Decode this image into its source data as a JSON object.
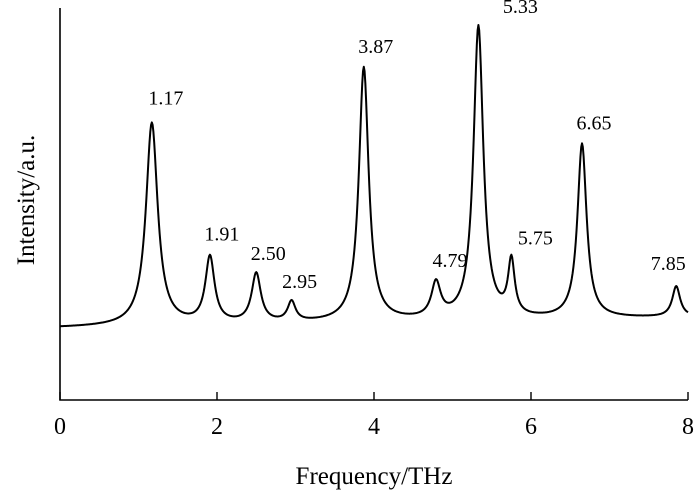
{
  "chart_data": {
    "type": "line",
    "xlabel": "Frequency/THz",
    "ylabel": "Intensity/a.u.",
    "xlim": [
      0,
      8
    ],
    "ylim": [
      0,
      1
    ],
    "x_ticks": [
      "0",
      "2",
      "4",
      "6",
      "8"
    ],
    "y_ticks_shown": false,
    "grid": false,
    "series": [
      {
        "color": "#000000",
        "baseline_left": 0.13,
        "baseline_right": 0.16,
        "peaks": [
          {
            "x": 1.17,
            "y": 0.72,
            "width": 0.09,
            "label": "1.17"
          },
          {
            "x": 1.91,
            "y": 0.34,
            "width": 0.07,
            "label": "1.91"
          },
          {
            "x": 2.5,
            "y": 0.29,
            "width": 0.07,
            "label": "2.50"
          },
          {
            "x": 2.95,
            "y": 0.21,
            "width": 0.06,
            "label": "2.95"
          },
          {
            "x": 3.87,
            "y": 0.88,
            "width": 0.075,
            "label": "3.87"
          },
          {
            "x": 4.79,
            "y": 0.27,
            "width": 0.07,
            "label": "4.79"
          },
          {
            "x": 5.33,
            "y": 1.0,
            "width": 0.075,
            "label": "5.33"
          },
          {
            "x": 5.75,
            "y": 0.34,
            "width": 0.05,
            "label": "5.75"
          },
          {
            "x": 6.65,
            "y": 0.66,
            "width": 0.07,
            "label": "6.65"
          },
          {
            "x": 7.85,
            "y": 0.25,
            "width": 0.06,
            "label": "7.85"
          }
        ]
      }
    ]
  }
}
